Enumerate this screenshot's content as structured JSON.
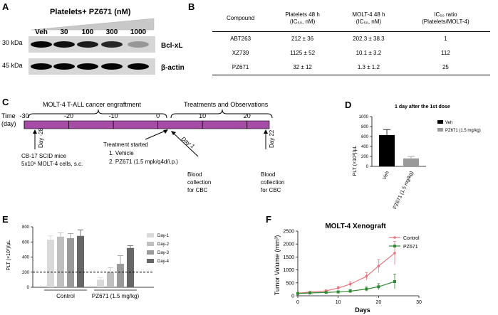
{
  "panel_labels": [
    "A",
    "B",
    "C",
    "D",
    "E",
    "F"
  ],
  "panel_a": {
    "title": "Platelets+ PZ671 (nM)",
    "lanes": [
      "Veh",
      "30",
      "100",
      "300",
      "1000"
    ],
    "rows": [
      {
        "mw": "30 kDa",
        "protein": "Bcl-xL",
        "intensity": [
          1.0,
          0.95,
          0.9,
          0.85,
          0.35
        ]
      },
      {
        "mw": "45 kDa",
        "protein": "β-actin",
        "intensity": [
          1.0,
          1.0,
          1.0,
          1.0,
          1.0
        ]
      }
    ]
  },
  "panel_b": {
    "headers": [
      {
        "main": "Compound",
        "sub": ""
      },
      {
        "main": "Platelets 48 h",
        "sub": "(IC₅₀, nM)"
      },
      {
        "main": "MOLT-4 48 h",
        "sub": "(IC₅₀, nM)"
      },
      {
        "main": "IC₅₀ ratio",
        "sub": "(Platelets/MOLT-4)"
      }
    ],
    "rows": [
      [
        "ABT263",
        "212 ± 36",
        "202.3 ± 38.3",
        "1"
      ],
      [
        "XZ739",
        "1125 ± 52",
        "10.1 ± 3.2",
        "112"
      ],
      [
        "PZ671",
        "32 ± 12",
        "1.3 ± 1.2",
        "25"
      ]
    ]
  },
  "panel_c": {
    "bracket_left": "MOLT-4 T-ALL cancer engraftment",
    "bracket_right": "Treatments and Observations",
    "axis_label_line1": "Time",
    "axis_label_line2": "(day)",
    "ticks": [
      -30,
      -20,
      -10,
      0,
      10,
      20
    ],
    "day_min": -30,
    "day_max": 25,
    "bar_color": "#a64ca6",
    "day_m28": "Day -28",
    "day_1": "Day 1",
    "day_22": "Day 22",
    "inoc_line1": "CB-17 SCID mice",
    "inoc_line2": "5x10⁶ MOLT-4 cells, s.c.",
    "treat_title": "Treatment started",
    "treat_1": "1. Vehicle",
    "treat_2": "2. PZ671 (1.5 mpk/q4d/i.p.)",
    "blood_line1": "Blood",
    "blood_line2": "collection",
    "blood_line3": "for CBC"
  },
  "chart_data": [
    {
      "type": "bar",
      "title": "1 day after the 1st dose",
      "ylabel": "PLT (×10³)/µL",
      "categories": [
        "Veh",
        "PZ671 (1.5 mg/kg)"
      ],
      "values": [
        630,
        160
      ],
      "errors": [
        110,
        40
      ],
      "colors": [
        "#000000",
        "#9a9a9a"
      ],
      "ylim": [
        0,
        1000
      ],
      "yticks": [
        0,
        200,
        400,
        600,
        800,
        1000
      ],
      "legend": [
        "Veh",
        "PZ671 (1.5 mg/kg)"
      ],
      "legend_position": "top-right"
    },
    {
      "type": "bar",
      "ylabel": "PLT (×10³)/µL",
      "categories": [
        "Control",
        "PZ671 (1.5 mg/kg)"
      ],
      "series": [
        {
          "name": "Day-1",
          "values": [
            630,
            100
          ],
          "errors": [
            50,
            30
          ],
          "color": "#d9d9d9"
        },
        {
          "name": "Day-2",
          "values": [
            670,
            200
          ],
          "errors": [
            50,
            60
          ],
          "color": "#bfbfbf"
        },
        {
          "name": "Day-3",
          "values": [
            650,
            310
          ],
          "errors": [
            60,
            110
          ],
          "color": "#999999"
        },
        {
          "name": "Day-4",
          "values": [
            680,
            520
          ],
          "errors": [
            80,
            30
          ],
          "color": "#666666"
        }
      ],
      "reference_line": 200,
      "ylim": [
        0,
        800
      ],
      "yticks": [
        0,
        200,
        400,
        600,
        800
      ],
      "legend_position": "right"
    },
    {
      "type": "line",
      "title": "MOLT-4 Xenograft",
      "xlabel": "Days",
      "ylabel": "Tumor Volume (mm³)",
      "xlim": [
        0,
        30
      ],
      "ylim": [
        0,
        2500
      ],
      "xticks": [
        0,
        10,
        20,
        30
      ],
      "yticks": [
        0,
        500,
        1000,
        1500,
        2000,
        2500
      ],
      "series": [
        {
          "name": "Control",
          "color": "#e8737d",
          "marker": "circle",
          "x": [
            0,
            3,
            7,
            10,
            13,
            17,
            20,
            24
          ],
          "y": [
            100,
            140,
            190,
            300,
            450,
            750,
            1150,
            1650
          ],
          "err": [
            20,
            30,
            40,
            60,
            90,
            150,
            250,
            450
          ]
        },
        {
          "name": "PZ671",
          "color": "#2e8b2e",
          "marker": "square",
          "x": [
            0,
            3,
            7,
            10,
            13,
            17,
            20,
            24
          ],
          "y": [
            90,
            110,
            130,
            150,
            180,
            260,
            350,
            550
          ],
          "err": [
            20,
            20,
            30,
            40,
            60,
            80,
            120,
            280
          ]
        }
      ],
      "legend_position": "top-right"
    }
  ]
}
